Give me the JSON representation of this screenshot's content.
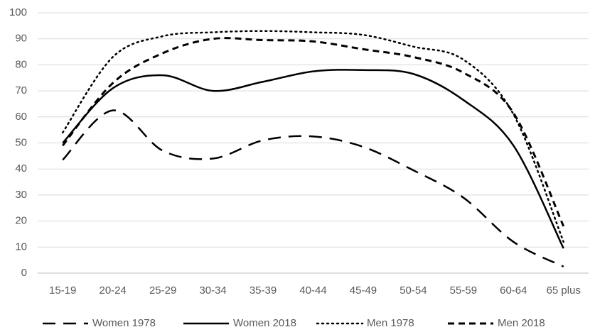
{
  "chart_data": {
    "type": "line",
    "categories": [
      "15-19",
      "20-24",
      "25-29",
      "30-34",
      "35-39",
      "40-44",
      "45-49",
      "50-54",
      "55-59",
      "60-64",
      "65 plus"
    ],
    "series": [
      {
        "name": "Women 1978",
        "color": "#000000",
        "style": "long-dash",
        "values": [
          43.5,
          62.5,
          47,
          44,
          51,
          52.5,
          48.5,
          39.5,
          29,
          12,
          2.5
        ]
      },
      {
        "name": "Women 2018",
        "color": "#000000",
        "style": "solid",
        "values": [
          50,
          71,
          76,
          70,
          73.5,
          77.5,
          78,
          76.5,
          66.5,
          49,
          9.5
        ]
      },
      {
        "name": "Men 1978",
        "color": "#000000",
        "style": "dotted",
        "values": [
          54,
          83,
          91,
          92.5,
          93,
          92.5,
          91.5,
          87,
          82,
          61,
          12
        ]
      },
      {
        "name": "Men 2018",
        "color": "#000000",
        "style": "short-dash",
        "values": [
          49,
          73,
          84.5,
          90,
          89.5,
          89,
          86,
          83,
          77,
          61.5,
          18
        ]
      }
    ],
    "ylim": [
      0,
      100
    ],
    "yticks": [
      0,
      10,
      20,
      30,
      40,
      50,
      60,
      70,
      80,
      90,
      100
    ],
    "grid": true,
    "legend": "bottom"
  }
}
